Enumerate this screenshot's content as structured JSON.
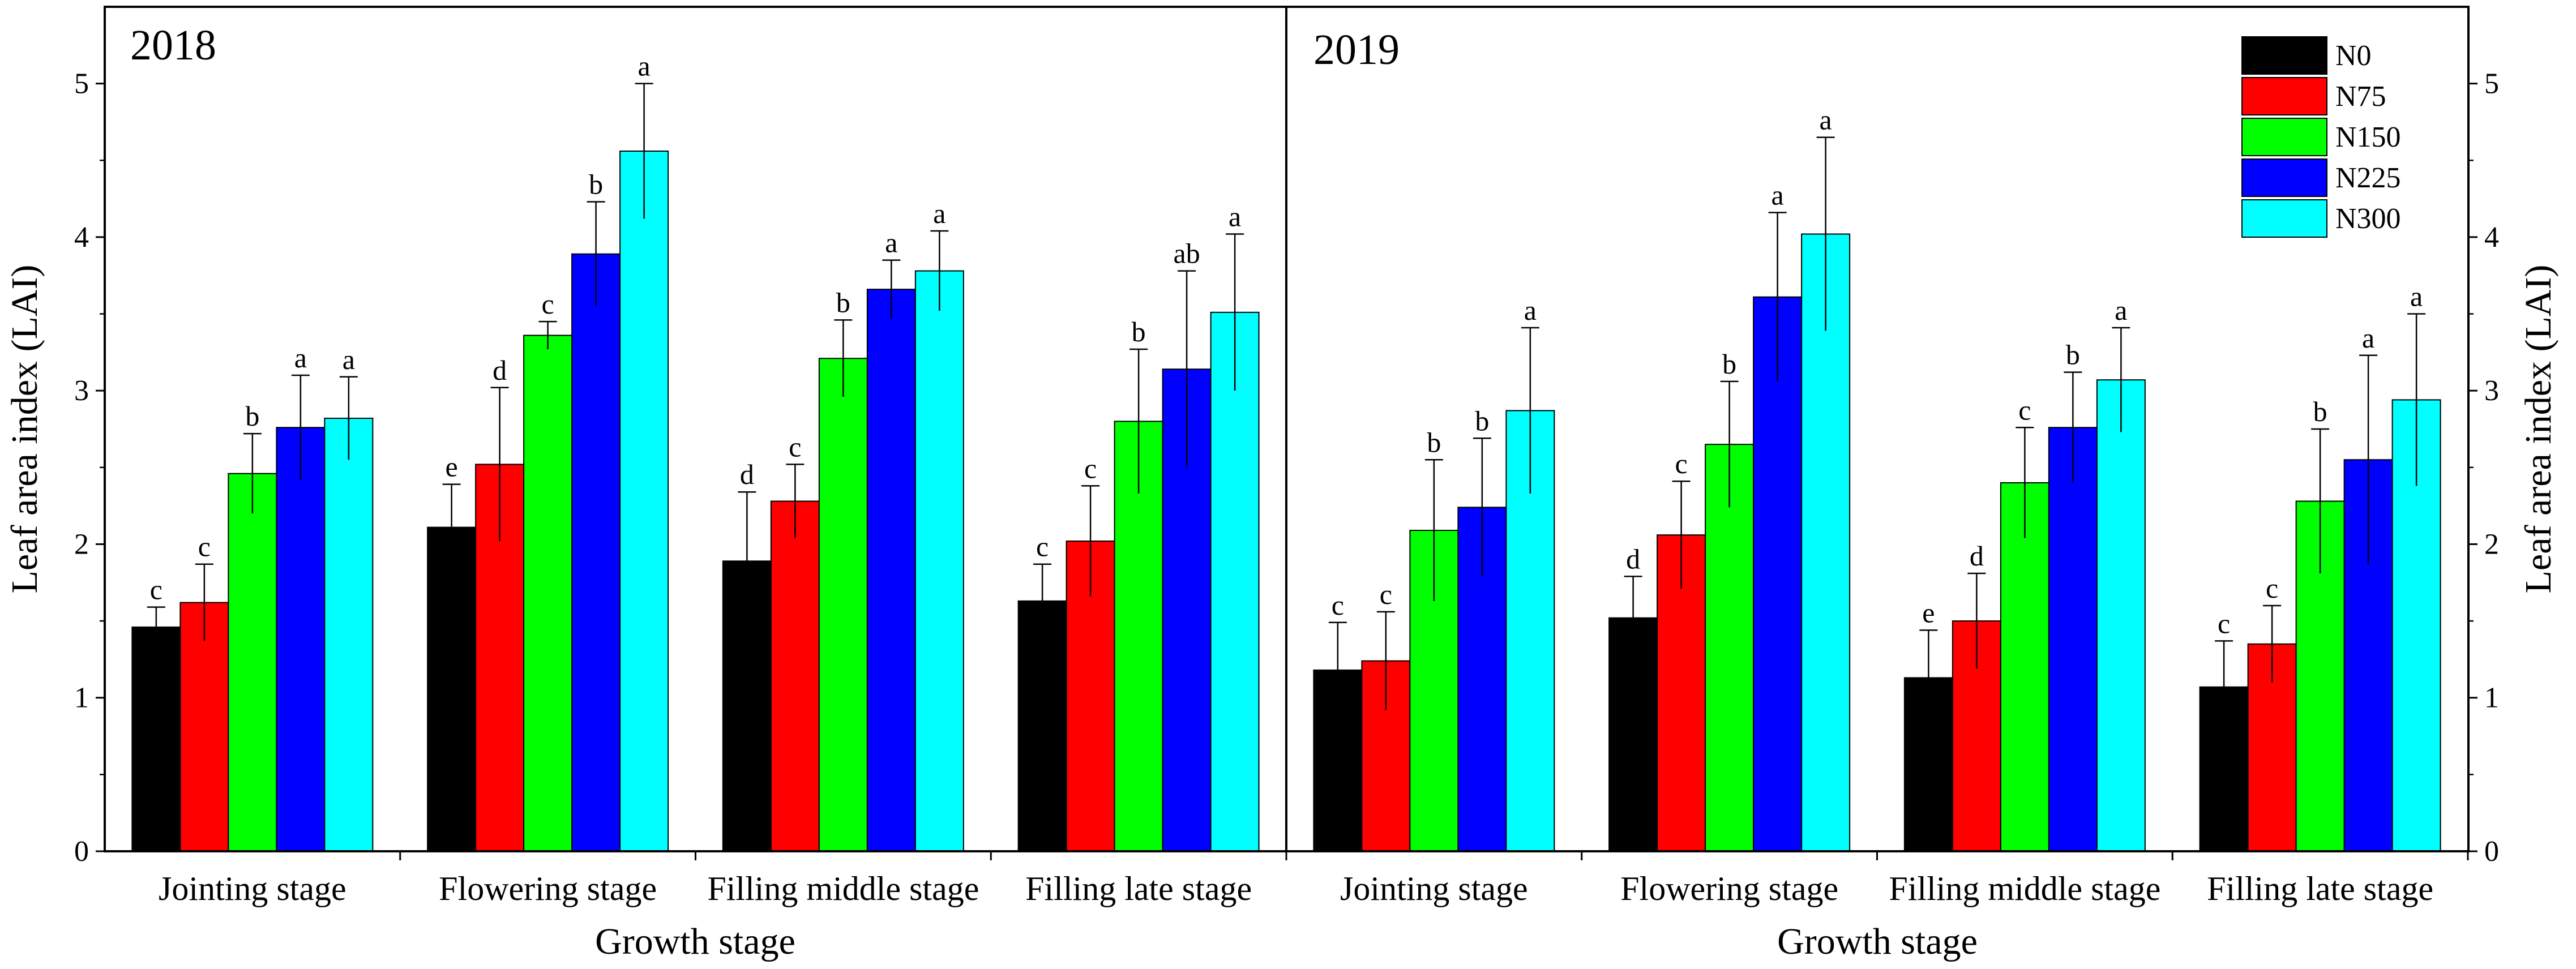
{
  "chart_data": {
    "type": "bar",
    "ylabel": "Leaf area index (LAI)",
    "xlabel": "Growth stage",
    "ylim": [
      0,
      5.5
    ],
    "yticks": [
      "0",
      "1",
      "2",
      "3",
      "4",
      "5"
    ],
    "legend": {
      "position": "top-right",
      "entries": [
        {
          "name": "N0",
          "color": "#000000"
        },
        {
          "name": "N75",
          "color": "#ff0000"
        },
        {
          "name": "N150",
          "color": "#00ff00"
        },
        {
          "name": "N225",
          "color": "#0000ff"
        },
        {
          "name": "N300",
          "color": "#00ffff"
        }
      ]
    },
    "categories": [
      "Jointing stage",
      "Flowering stage",
      "Filling middle stage",
      "Filling late stage"
    ],
    "panels": [
      {
        "title": "2018",
        "series": [
          {
            "name": "N0",
            "values": [
              1.46,
              2.11,
              1.89,
              1.63
            ],
            "errors": [
              0.13,
              0.28,
              0.45,
              0.24
            ],
            "letters": [
              "c",
              "e",
              "d",
              "c"
            ]
          },
          {
            "name": "N75",
            "values": [
              1.62,
              2.52,
              2.28,
              2.02
            ],
            "errors": [
              0.25,
              0.5,
              0.24,
              0.36
            ],
            "letters": [
              "c",
              "d",
              "c",
              "c"
            ]
          },
          {
            "name": "N150",
            "values": [
              2.46,
              3.36,
              3.21,
              2.8
            ],
            "errors": [
              0.26,
              0.09,
              0.25,
              0.47
            ],
            "letters": [
              "b",
              "c",
              "b",
              "b"
            ]
          },
          {
            "name": "N225",
            "values": [
              2.76,
              3.89,
              3.66,
              3.14
            ],
            "errors": [
              0.34,
              0.34,
              0.19,
              0.64
            ],
            "letters": [
              "a",
              "b",
              "a",
              "ab"
            ]
          },
          {
            "name": "N300",
            "values": [
              2.82,
              4.56,
              3.78,
              3.51
            ],
            "errors": [
              0.27,
              0.44,
              0.26,
              0.51
            ],
            "letters": [
              "a",
              "a",
              "a",
              "a"
            ]
          }
        ]
      },
      {
        "title": "2019",
        "series": [
          {
            "name": "N0",
            "values": [
              1.18,
              1.52,
              1.13,
              1.07
            ],
            "errors": [
              0.31,
              0.27,
              0.31,
              0.3
            ],
            "letters": [
              "c",
              "d",
              "e",
              "c"
            ]
          },
          {
            "name": "N75",
            "values": [
              1.24,
              2.06,
              1.5,
              1.35
            ],
            "errors": [
              0.32,
              0.35,
              0.31,
              0.25
            ],
            "letters": [
              "c",
              "c",
              "d",
              "c"
            ]
          },
          {
            "name": "N150",
            "values": [
              2.09,
              2.65,
              2.4,
              2.28
            ],
            "errors": [
              0.46,
              0.41,
              0.36,
              0.47
            ],
            "letters": [
              "b",
              "b",
              "c",
              "b"
            ]
          },
          {
            "name": "N225",
            "values": [
              2.24,
              3.61,
              2.76,
              2.55
            ],
            "errors": [
              0.45,
              0.55,
              0.36,
              0.68
            ],
            "letters": [
              "b",
              "a",
              "b",
              "a"
            ]
          },
          {
            "name": "N300",
            "values": [
              2.87,
              4.02,
              3.07,
              2.94
            ],
            "errors": [
              0.54,
              0.63,
              0.34,
              0.56
            ],
            "letters": [
              "a",
              "a",
              "a",
              "a"
            ]
          }
        ]
      }
    ]
  }
}
